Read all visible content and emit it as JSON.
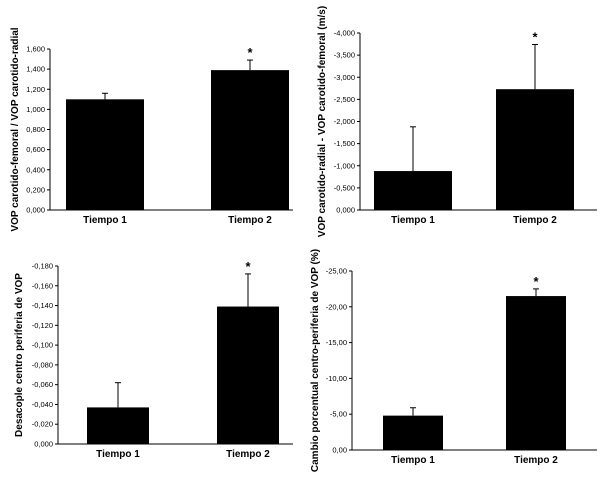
{
  "chart_data": [
    {
      "type": "bar",
      "ylabel": "VOP carotido-femoral / VOP carotido-radial",
      "categories": [
        "Tiempo 1",
        "Tiempo 2"
      ],
      "values": [
        1.1,
        1.39
      ],
      "error_plus": [
        0.06,
        0.1
      ],
      "significance": [
        "",
        "*"
      ],
      "ylim": [
        0,
        1.6
      ],
      "yticks": [
        "0,000",
        "0,200",
        "0,400",
        "0,600",
        "0,800",
        "1,000",
        "1,200",
        "1,400",
        "1,600"
      ],
      "reversed": false,
      "grid": false,
      "bar_color": "#000000"
    },
    {
      "type": "bar",
      "ylabel": "VOP carotido-radial - VOP carotido-femoral (m/s)",
      "categories": [
        "Tiempo 1",
        "Tiempo 2"
      ],
      "values": [
        -0.88,
        -2.73
      ],
      "error_plus": [
        -1.0,
        -1.01
      ],
      "significance": [
        "",
        "*"
      ],
      "ylim": [
        0,
        -4
      ],
      "yticks": [
        "0,000",
        "-0,500",
        "-1,000",
        "-1,500",
        "-2,000",
        "-2,500",
        "-3,000",
        "-3,500",
        "-4,000"
      ],
      "reversed": true,
      "grid": false,
      "bar_color": "#000000"
    },
    {
      "type": "bar",
      "ylabel": "Desacople centro periferia de VOP",
      "categories": [
        "Tiempo 1",
        "Tiempo 2"
      ],
      "values": [
        -0.037,
        -0.139
      ],
      "error_plus": [
        -0.025,
        -0.033
      ],
      "significance": [
        "",
        "*"
      ],
      "ylim": [
        0,
        -0.18
      ],
      "yticks": [
        "0,000",
        "-0,020",
        "-0,040",
        "-0,060",
        "-0,080",
        "-0,100",
        "-0,120",
        "-0,140",
        "-0,160",
        "-0,180"
      ],
      "reversed": true,
      "grid": false,
      "bar_color": "#000000"
    },
    {
      "type": "bar",
      "ylabel": "Cambio porcentual centro-periferia de VOP (%)",
      "categories": [
        "Tiempo 1",
        "Tiempo 2"
      ],
      "values": [
        -4.8,
        -21.5
      ],
      "error_plus": [
        -1.1,
        -1.0
      ],
      "significance": [
        "",
        "*"
      ],
      "ylim": [
        0,
        -25
      ],
      "yticks": [
        "0,00",
        "-5,00",
        "-10,00",
        "-15,00",
        "-20,00",
        "-25,00"
      ],
      "reversed": true,
      "grid": false,
      "bar_color": "#000000"
    }
  ]
}
